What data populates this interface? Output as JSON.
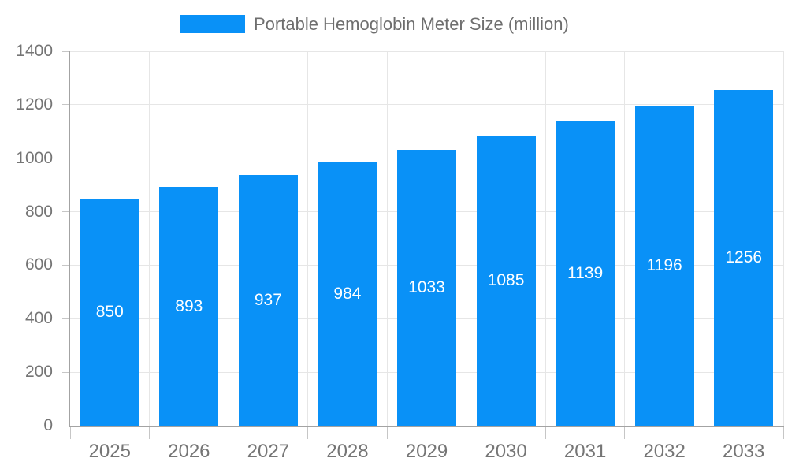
{
  "chart": {
    "legend": {
      "label": "Portable Hemoglobin Meter Size (million)"
    }
  },
  "chart_data": {
    "type": "bar",
    "title": "Portable Hemoglobin Meter Size (million)",
    "series_name": "Portable Hemoglobin Meter Size (million)",
    "categories": [
      "2025",
      "2026",
      "2027",
      "2028",
      "2029",
      "2030",
      "2031",
      "2032",
      "2033"
    ],
    "values": [
      850,
      893,
      937,
      984,
      1033,
      1085,
      1139,
      1196,
      1256
    ],
    "xlabel": "",
    "ylabel": "",
    "ylim": [
      0,
      1400
    ],
    "yticks": [
      0,
      200,
      400,
      600,
      800,
      1000,
      1200,
      1400
    ],
    "grid": true,
    "legend_position": "top-center",
    "bar_label_position": "inside-middle",
    "colors": {
      "bar": "#0991F7",
      "bar_label": "#FFFFFF",
      "axis_text": "#757575",
      "legend_text": "#6E6E6E",
      "grid_line": "#E6E6E6",
      "axis_line": "#A3A3A3",
      "tick_line": "#C6C6C6",
      "background": "#FFFFFF"
    }
  }
}
